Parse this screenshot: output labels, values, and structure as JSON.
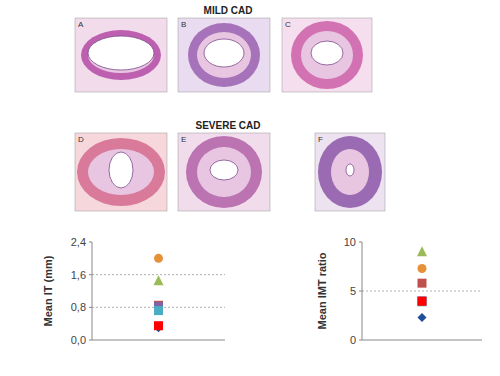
{
  "figure": {
    "rows": [
      {
        "title": "MILD CAD",
        "panels": [
          "A",
          "B",
          "C"
        ]
      },
      {
        "title": "SEVERE CAD",
        "panels": [
          "D",
          "E",
          "F"
        ]
      }
    ]
  },
  "chart_data": [
    {
      "type": "scatter",
      "y_label": "Mean IT (mm)",
      "categories": [
        null
      ],
      "ylim": [
        0,
        2.4
      ],
      "yticks": [
        {
          "value": 0,
          "label": "0,0"
        },
        {
          "value": 0.8,
          "label": "0,8"
        },
        {
          "value": 1.6,
          "label": "1,6"
        },
        {
          "value": 2.4,
          "label": "2,4"
        }
      ],
      "grid": true,
      "tick_labels": "y",
      "series": [
        {
          "color": "#e69138",
          "marker": "circle",
          "values": [
            2.0
          ]
        },
        {
          "color": "#9bbb59",
          "marker": "triangle",
          "values": [
            1.45
          ]
        },
        {
          "color": "#c0504d",
          "marker": "square",
          "values": [
            0.85
          ]
        },
        {
          "color": "#8064a2",
          "marker": "square",
          "values": [
            0.82
          ]
        },
        {
          "color": "#4bacc6",
          "marker": "square",
          "values": [
            0.72
          ]
        },
        {
          "color": "#1f4e9a",
          "marker": "diamond",
          "values": [
            0.3
          ]
        },
        {
          "color": "#ff0000",
          "marker": "square",
          "values": [
            0.35
          ]
        }
      ]
    },
    {
      "type": "scatter",
      "y_label": "Mean IMT ratio",
      "categories": [
        null
      ],
      "ylim": [
        0,
        10
      ],
      "yticks": [
        0,
        5,
        10
      ],
      "grid": true,
      "tick_labels": "y",
      "series": [
        {
          "color": "#e69138",
          "marker": "circle",
          "values": [
            7.3
          ]
        },
        {
          "color": "#9bbb59",
          "marker": "triangle",
          "values": [
            9.0
          ]
        },
        {
          "color": "#c0504d",
          "marker": "square",
          "values": [
            5.8
          ]
        },
        {
          "color": "#8064a2",
          "marker": "square",
          "values": [
            4.0
          ]
        },
        {
          "color": "#4bacc6",
          "marker": "square",
          "values": [
            3.9
          ]
        },
        {
          "color": "#1f4e9a",
          "marker": "diamond",
          "values": [
            2.3
          ]
        },
        {
          "color": "#ff0000",
          "marker": "square",
          "values": [
            3.95
          ]
        }
      ]
    }
  ]
}
